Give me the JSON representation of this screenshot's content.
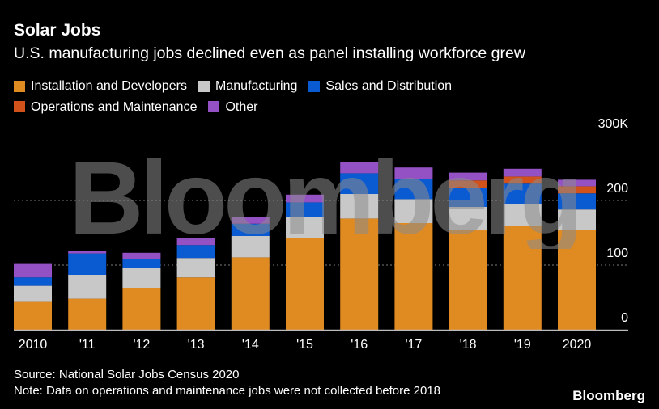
{
  "chart_data": {
    "type": "bar",
    "stacked": true,
    "title": "Solar Jobs",
    "subtitle": "U.S. manufacturing jobs declined even as panel installing workforce grew",
    "categories": [
      "2010",
      "'11",
      "'12",
      "'13",
      "'14",
      "'15",
      "'16",
      "'17",
      "'18",
      "'19",
      "2020"
    ],
    "series": [
      {
        "name": "Installation and Developers",
        "color": "#e08a22",
        "values": [
          43,
          48,
          65,
          81,
          112,
          142,
          172,
          165,
          155,
          161,
          155
        ]
      },
      {
        "name": "Manufacturing",
        "color": "#c8c8c8",
        "values": [
          25,
          37,
          30,
          30,
          33,
          32,
          38,
          37,
          35,
          34,
          31
        ]
      },
      {
        "name": "Sales and Distribution",
        "color": "#0a5ad1",
        "values": [
          13,
          33,
          15,
          20,
          19,
          23,
          32,
          31,
          30,
          31,
          25
        ]
      },
      {
        "name": "Operations and Maintenance",
        "color": "#d2521c",
        "values": [
          0,
          0,
          0,
          0,
          0,
          0,
          0,
          0,
          11,
          11,
          11
        ]
      },
      {
        "name": "Other",
        "color": "#9451c4",
        "values": [
          22,
          4,
          9,
          11,
          10,
          12,
          18,
          18,
          12,
          12,
          10
        ]
      }
    ],
    "yticks": [
      {
        "value": 0,
        "label": "0"
      },
      {
        "value": 100,
        "label": "100"
      },
      {
        "value": 200,
        "label": "200"
      },
      {
        "value": 300,
        "label": "300K"
      }
    ],
    "ylim": [
      0,
      300
    ],
    "grid": true,
    "legend_position": "top-left"
  },
  "source": "Source: National Solar Jobs Census 2020",
  "note": "Note: Data on operations and maintenance jobs were not collected before 2018",
  "brand": "Bloomberg",
  "watermark": "Bloomberg"
}
